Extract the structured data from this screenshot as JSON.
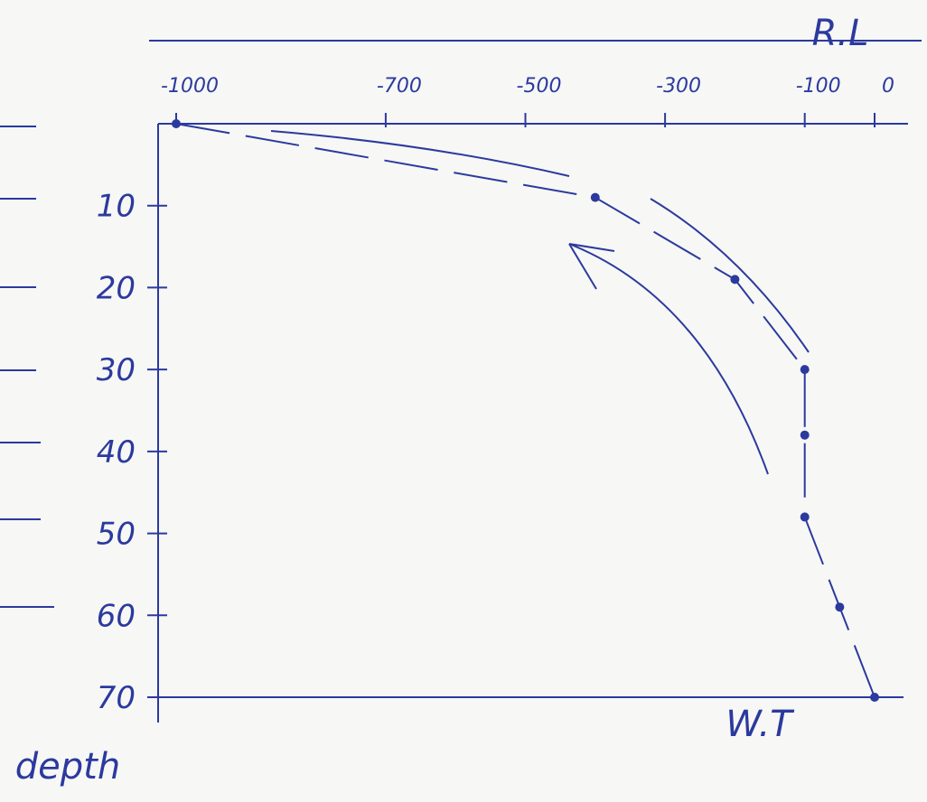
{
  "chart_data": {
    "type": "line",
    "title": "R.L",
    "x_label": "W.T",
    "y_label": "depth",
    "x": [
      -1000,
      -400,
      -200,
      -100,
      -100,
      -100,
      -50,
      0
    ],
    "series": [
      {
        "name": "R.L",
        "color": "#2b3a9e",
        "values": [
          0,
          9,
          19,
          30,
          38,
          48,
          59,
          70
        ]
      }
    ],
    "xlim": [
      -1000,
      0
    ],
    "xticks": [
      -1000,
      -700,
      -500,
      -300,
      -100,
      0
    ],
    "ylim": [
      0,
      70
    ],
    "yticks": [
      10,
      20,
      30,
      40,
      50,
      60,
      70
    ],
    "y_inverted": true
  }
}
